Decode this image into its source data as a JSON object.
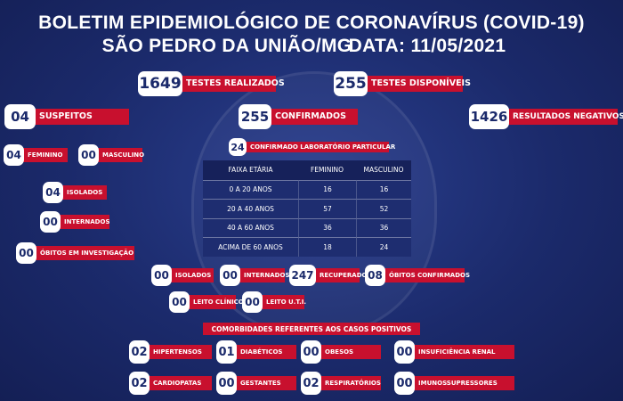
{
  "header": {
    "title": "BOLETIM EPIDEMIOLÓGICO DE CORONAVÍRUS (COVID-19)",
    "location": "SÃO PEDRO DA UNIÃO/MG",
    "date": "DATA: 11/05/2021"
  },
  "stats": [
    {
      "value": "1649",
      "label": "TESTES REALIZADOS"
    },
    {
      "value": "255",
      "label": "TESTES DISPONÍVEIS"
    },
    {
      "value": "04",
      "label": "SUSPEITOS"
    },
    {
      "value": "255",
      "label": "CONFIRMADOS"
    },
    {
      "value": "1426",
      "label": "RESULTADOS NEGATIVOS"
    },
    {
      "value": "24",
      "label": "CONFIRMADO LABORATÓRIO PARTICULAR"
    },
    {
      "value": "04",
      "label": "FEMININO"
    },
    {
      "value": "00",
      "label": "MASCULINO"
    },
    {
      "value": "04",
      "label": "ISOLADOS"
    },
    {
      "value": "00",
      "label": "INTERNADOS"
    },
    {
      "value": "00",
      "label": "ÓBITOS EM INVESTIGAÇÃO"
    },
    {
      "value": "00",
      "label": "ISOLADOS"
    },
    {
      "value": "00",
      "label": "INTERNADOS"
    },
    {
      "value": "247",
      "label": "RECUPERADOS"
    },
    {
      "value": "08",
      "label": "ÓBITOS CONFIRMADOS"
    },
    {
      "value": "00",
      "label": "LEITO CLÍNICO"
    },
    {
      "value": "00",
      "label": "LEITO U.T.I."
    }
  ],
  "table": {
    "header": [
      "FAIXA ETÁRIA",
      "FEMININO",
      "MASCULINO"
    ],
    "rows": [
      [
        "0 A 20 ANOS",
        "16",
        "16"
      ],
      [
        "20 A 40 ANOS",
        "57",
        "52"
      ],
      [
        "40 A 60 ANOS",
        "36",
        "36"
      ],
      [
        "ACIMA DE 60 ANOS",
        "18",
        "24"
      ]
    ]
  },
  "comorbidities": {
    "title": "COMORBIDADES REFERENTES AOS CASOS POSITIVOS",
    "items": [
      {
        "value": "02",
        "label": "HIPERTENSOS"
      },
      {
        "value": "01",
        "label": "DIABÉTICOS"
      },
      {
        "value": "00",
        "label": "OBESOS"
      },
      {
        "value": "00",
        "label": "INSUFICIÊNCIA RENAL"
      },
      {
        "value": "02",
        "label": "CARDIOPATAS"
      },
      {
        "value": "00",
        "label": "GESTANTES"
      },
      {
        "value": "02",
        "label": "RESPIRATÓRIOS"
      },
      {
        "value": "00",
        "label": "IMUNOSSUPRESSORES"
      }
    ]
  }
}
